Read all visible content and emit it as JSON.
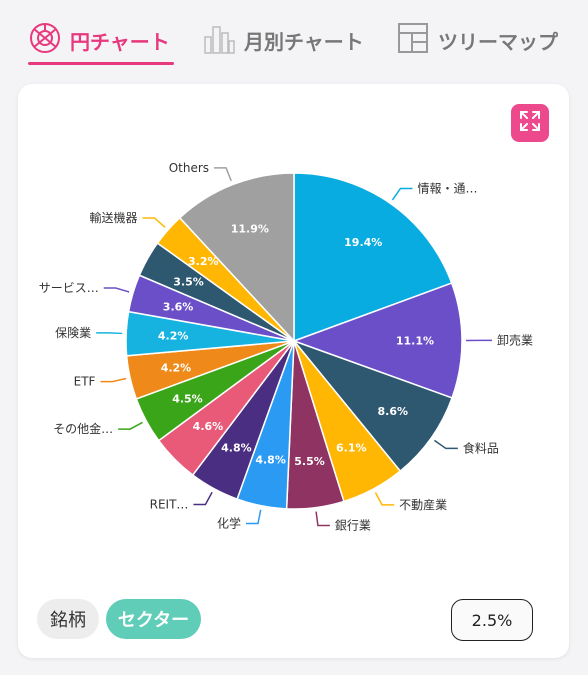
{
  "tabs": [
    {
      "label": "円チャート",
      "icon": "pie-chart-icon",
      "active": true
    },
    {
      "label": "月別チャート",
      "icon": "city-bars-icon",
      "active": false
    },
    {
      "label": "ツリーマップ",
      "icon": "treemap-icon",
      "active": false
    }
  ],
  "colors": {
    "accent": "#e8387e",
    "sector_active": "#5fcdb8",
    "expand_button": "#ec4a8c"
  },
  "chart_data": {
    "type": "pie",
    "slices": [
      {
        "label": "情報・通…",
        "value": 19.4,
        "value_label": "19.4%",
        "color": "#09ace0"
      },
      {
        "label": "卸売業",
        "value": 11.1,
        "value_label": "11.1%",
        "color": "#6a4fc8"
      },
      {
        "label": "食料品",
        "value": 8.6,
        "value_label": "8.6%",
        "color": "#2d5870"
      },
      {
        "label": "不動産業",
        "value": 6.1,
        "value_label": "6.1%",
        "color": "#ffb703"
      },
      {
        "label": "銀行業",
        "value": 5.5,
        "value_label": "5.5%",
        "color": "#8f3462"
      },
      {
        "label": "化学",
        "value": 4.8,
        "value_label": "4.8%",
        "color": "#2b9af3"
      },
      {
        "label": "REIT…",
        "value": 4.8,
        "value_label": "4.8%",
        "color": "#4a2e82"
      },
      {
        "label": "",
        "value": 4.6,
        "value_label": "4.6%",
        "color": "#e85a78"
      },
      {
        "label": "その他金…",
        "value": 4.5,
        "value_label": "4.5%",
        "color": "#3aa519"
      },
      {
        "label": "ETF",
        "value": 4.2,
        "value_label": "4.2%",
        "color": "#ef8a1a"
      },
      {
        "label": "保険業",
        "value": 4.2,
        "value_label": "4.2%",
        "color": "#16b3e0"
      },
      {
        "label": "サービス…",
        "value": 3.6,
        "value_label": "3.6%",
        "color": "#6a4fc8"
      },
      {
        "label": "",
        "value": 3.5,
        "value_label": "3.5%",
        "color": "#2d5870"
      },
      {
        "label": "輸送機器",
        "value": 3.2,
        "value_label": "3.2%",
        "color": "#ffb703"
      },
      {
        "label": "Others",
        "value": 11.9,
        "value_label": "11.9%",
        "color": "#a0a0a0"
      }
    ]
  },
  "controls": {
    "stock_label": "銘柄",
    "sector_label": "セクター",
    "threshold": "2.5%"
  }
}
